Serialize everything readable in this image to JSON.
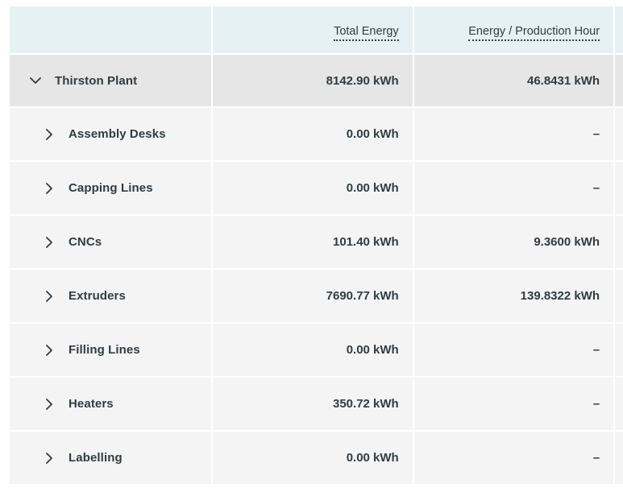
{
  "header": {
    "col_total": "Total Energy",
    "col_per_hour": "Energy / Production Hour"
  },
  "plant": {
    "name": "Thirston Plant",
    "total": "8142.90 kWh",
    "per_hour": "46.8431 kWh",
    "icon": "chevron-down-icon"
  },
  "rows": [
    {
      "name": "Assembly Desks",
      "total": "0.00 kWh",
      "per_hour": "–"
    },
    {
      "name": "Capping Lines",
      "total": "0.00 kWh",
      "per_hour": "–"
    },
    {
      "name": "CNCs",
      "total": "101.40 kWh",
      "per_hour": "9.3600 kWh"
    },
    {
      "name": "Extruders",
      "total": "7690.77 kWh",
      "per_hour": "139.8322 kWh"
    },
    {
      "name": "Filling Lines",
      "total": "0.00 kWh",
      "per_hour": "–"
    },
    {
      "name": "Heaters",
      "total": "350.72 kWh",
      "per_hour": "–"
    },
    {
      "name": "Labelling",
      "total": "0.00 kWh",
      "per_hour": "–"
    }
  ],
  "colors": {
    "header_bg": "#e6f1f3",
    "plant_bg": "#e6e6e6",
    "row_bg": "#f4f4f4",
    "text": "#2f3c44",
    "icon": "#8a9499"
  }
}
